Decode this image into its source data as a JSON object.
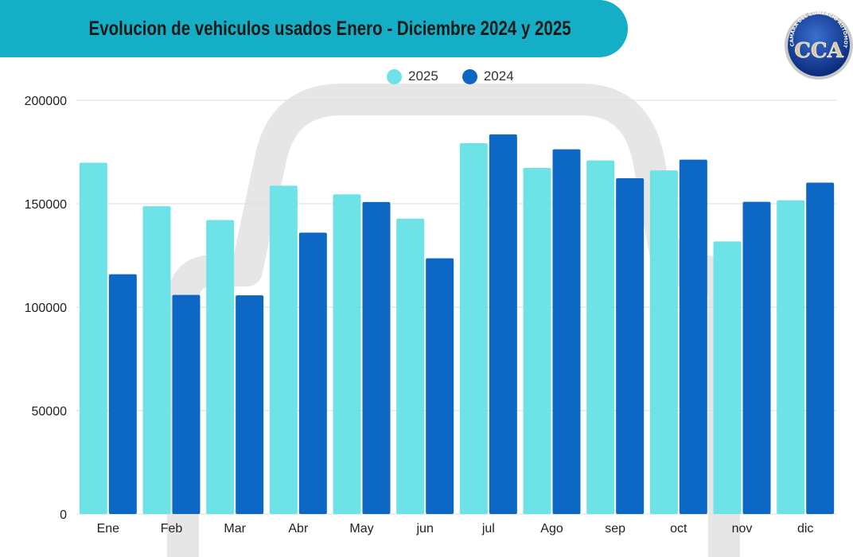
{
  "title": "Evolucion de vehiculos usados Enero - Diciembre 2024 y 2025",
  "colors": {
    "banner": "#14AFC6",
    "series_2025": "#6DE3E7",
    "series_2024": "#0D68C5",
    "grid": "#DDDDDD",
    "watermark": "#E6E6E6"
  },
  "logo": {
    "text": "CAMARA DEL COMERCIO AUTOMOTOR",
    "letters": "CCA"
  },
  "chart_data": {
    "type": "bar",
    "categories": [
      "Ene",
      "Feb",
      "Mar",
      "Abr",
      "May",
      "jun",
      "jul",
      "Ago",
      "sep",
      "oct",
      "nov",
      "dic"
    ],
    "series": [
      {
        "name": "2025",
        "values": [
          169800,
          148800,
          142100,
          158700,
          154500,
          142800,
          179300,
          167300,
          170900,
          166100,
          131800,
          151700
        ]
      },
      {
        "name": "2024",
        "values": [
          115900,
          105900,
          105700,
          136000,
          150800,
          123600,
          183500,
          176300,
          162300,
          171300,
          150900,
          160200
        ]
      }
    ],
    "ylim": [
      0,
      200000
    ],
    "yticks": [
      0,
      50000,
      100000,
      150000,
      200000
    ],
    "grid": true,
    "legend_position": "top-center"
  }
}
